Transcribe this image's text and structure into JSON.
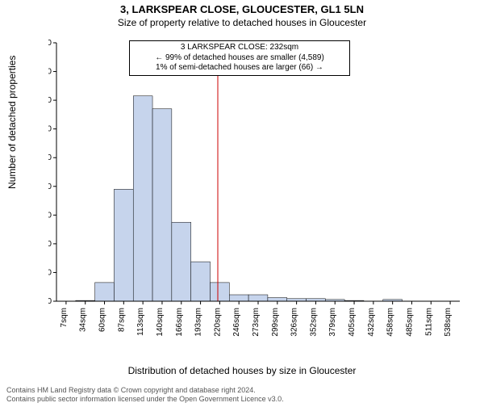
{
  "titles": {
    "main": "3, LARKSPEAR CLOSE, GLOUCESTER, GL1 5LN",
    "sub": "Size of property relative to detached houses in Gloucester"
  },
  "chart": {
    "type": "histogram",
    "xlabel": "Distribution of detached houses by size in Gloucester",
    "ylabel": "Number of detached properties",
    "ylim": [
      0,
      1800
    ],
    "ytick_step": 200,
    "x_categories": [
      "7sqm",
      "34sqm",
      "60sqm",
      "87sqm",
      "113sqm",
      "140sqm",
      "166sqm",
      "193sqm",
      "220sqm",
      "246sqm",
      "273sqm",
      "299sqm",
      "326sqm",
      "352sqm",
      "379sqm",
      "405sqm",
      "432sqm",
      "458sqm",
      "485sqm",
      "511sqm",
      "538sqm"
    ],
    "bars": [
      0,
      5,
      130,
      780,
      1430,
      1340,
      550,
      275,
      130,
      45,
      45,
      25,
      18,
      18,
      12,
      5,
      0,
      12,
      0,
      0,
      0
    ],
    "bar_color": "#c6d4ec",
    "bar_edge": "#000000",
    "marker_line_x_index": 8.4,
    "marker_line_color": "#cc0000",
    "axis_color": "#000000",
    "background": "#ffffff"
  },
  "annotation": {
    "line1": "3 LARKSPEAR CLOSE: 232sqm",
    "line2": "← 99% of detached houses are smaller (4,589)",
    "line3": "1% of semi-detached houses are larger (66) →"
  },
  "footer": {
    "line1": "Contains HM Land Registry data © Crown copyright and database right 2024.",
    "line2": "Contains public sector information licensed under the Open Government Licence v3.0."
  }
}
